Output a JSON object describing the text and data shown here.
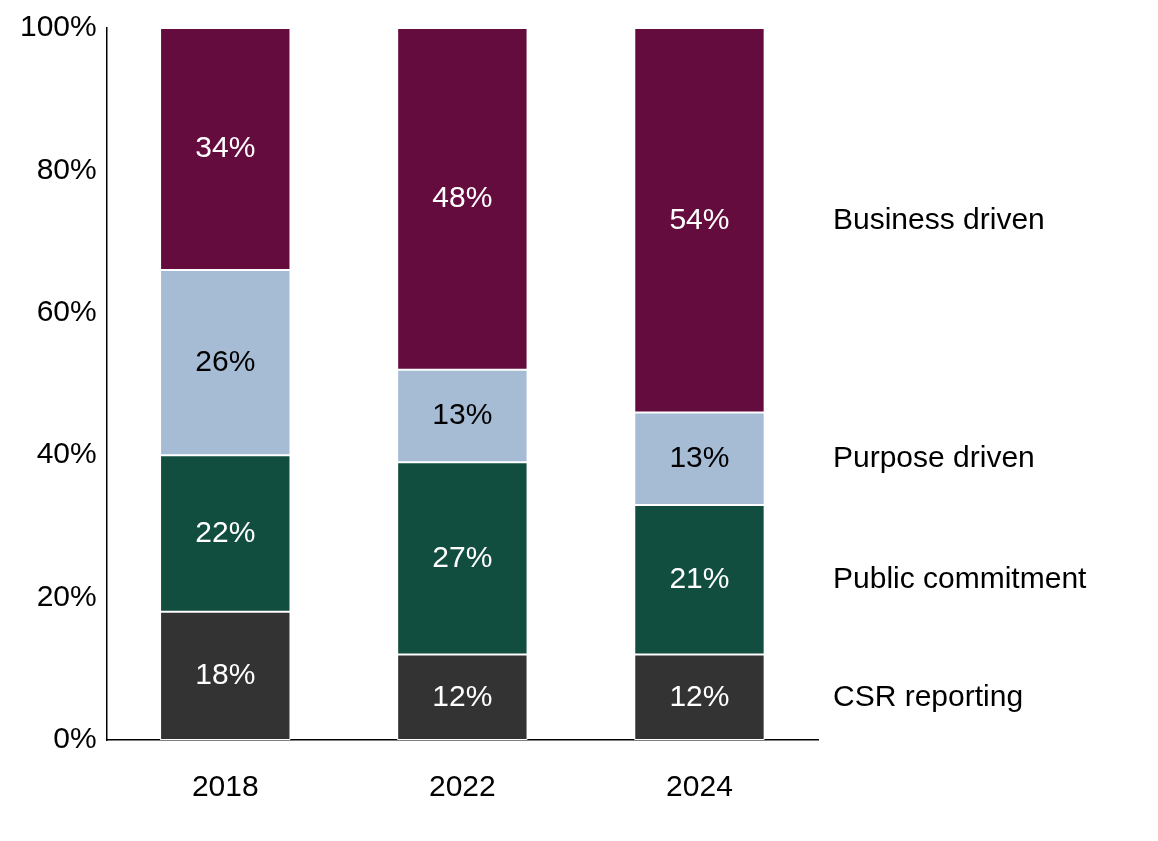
{
  "chart_data": {
    "type": "bar",
    "stacked": true,
    "categories": [
      "2018",
      "2022",
      "2024"
    ],
    "series": [
      {
        "name": "CSR reporting",
        "color": "#333333",
        "values": [
          18,
          12,
          12
        ]
      },
      {
        "name": "Public commitment",
        "color": "#124e3f",
        "values": [
          22,
          27,
          21
        ]
      },
      {
        "name": "Purpose driven",
        "color": "#a6bcd4",
        "values": [
          26,
          13,
          13
        ]
      },
      {
        "name": "Business driven",
        "color": "#650c3f",
        "values": [
          34,
          48,
          54
        ]
      }
    ],
    "ylim": [
      0,
      100
    ],
    "yticks": [
      {
        "value": 0,
        "label": "0%"
      },
      {
        "value": 20,
        "label": "20%"
      },
      {
        "value": 40,
        "label": "40%"
      },
      {
        "value": 60,
        "label": "60%"
      },
      {
        "value": 80,
        "label": "80%"
      },
      {
        "value": 100,
        "label": "100%"
      }
    ],
    "value_labels": [
      [
        "18%",
        "12%",
        "12%"
      ],
      [
        "22%",
        "27%",
        "21%"
      ],
      [
        "26%",
        "13%",
        "13%"
      ],
      [
        "34%",
        "48%",
        "54%"
      ]
    ],
    "grid": false,
    "legend": false
  }
}
